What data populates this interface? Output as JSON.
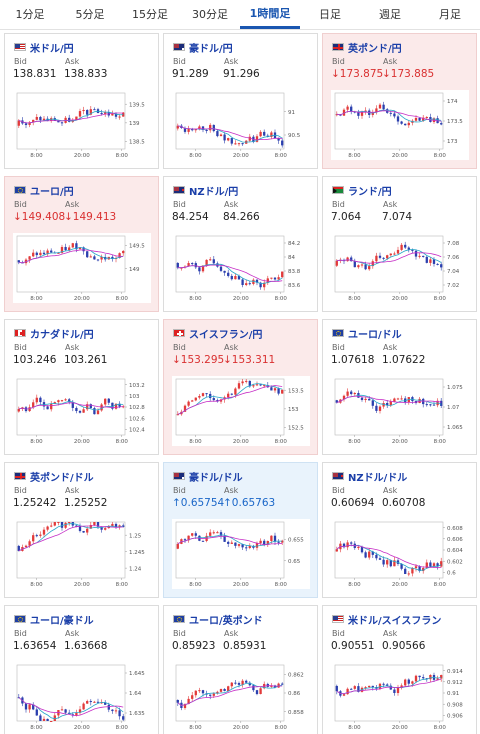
{
  "tabs": [
    "1分足",
    "5分足",
    "15分足",
    "30分足",
    "1時間足",
    "日足",
    "週足",
    "月足"
  ],
  "active_tab": 4,
  "labels": {
    "bid": "Bid",
    "ask": "Ask"
  },
  "colors": {
    "bull": "#e23a3a",
    "bear": "#2b3fae",
    "ma1": "#c62fc6",
    "ma2": "#27a7c8",
    "down_bg": "#fbeaea",
    "up_bg": "#e9f3fc",
    "accent": "#1a56b0"
  },
  "cards": [
    {
      "name": "米ドル/円",
      "flag": "us-flag",
      "bid": "138.831",
      "ask": "138.833",
      "trend": "none",
      "xticks": [
        "8:00",
        "20:00",
        "8:00"
      ],
      "yticks": [
        "139.5",
        "139",
        "138.5"
      ],
      "ylim": [
        138.3,
        139.8
      ]
    },
    {
      "name": "豪ドル/円",
      "flag": "au-flag",
      "bid": "91.289",
      "ask": "91.296",
      "trend": "none",
      "xticks": [
        "8:00",
        "20:00",
        "8:00"
      ],
      "yticks": [
        "91",
        "90.5"
      ],
      "ylim": [
        90.2,
        91.4
      ]
    },
    {
      "name": "英ポンド/円",
      "flag": "gb-flag",
      "bid": "↓173.875",
      "ask": "↓173.885",
      "trend": "down",
      "xticks": [
        "8:00",
        "20:00",
        "8:00"
      ],
      "yticks": [
        "174",
        "173.5",
        "173"
      ],
      "ylim": [
        172.8,
        174.2
      ]
    },
    {
      "name": "ユーロ/円",
      "flag": "eu-flag",
      "bid": "↓149.408",
      "ask": "↓149.413",
      "trend": "down",
      "xticks": [
        "8:00",
        "20:00",
        "8:00"
      ],
      "yticks": [
        "149.5",
        "149"
      ],
      "ylim": [
        148.5,
        149.7
      ]
    },
    {
      "name": "NZドル/円",
      "flag": "nz-flag",
      "bid": "84.254",
      "ask": "84.266",
      "trend": "none",
      "xticks": [
        "8:00",
        "20:00",
        "8:00"
      ],
      "yticks": [
        "84.2",
        "84",
        "83.8",
        "83.6"
      ],
      "ylim": [
        83.5,
        84.3
      ]
    },
    {
      "name": "ランド/円",
      "flag": "za-flag",
      "bid": "7.064",
      "ask": "7.074",
      "trend": "none",
      "xticks": [
        "8:00",
        "20:00",
        "8:00"
      ],
      "yticks": [
        "7.08",
        "7.06",
        "7.04",
        "7.02"
      ],
      "ylim": [
        7.01,
        7.09
      ]
    },
    {
      "name": "カナダドル/円",
      "flag": "ca-flag",
      "bid": "103.246",
      "ask": "103.261",
      "trend": "none",
      "xticks": [
        "8:00",
        "20:00",
        "8:00"
      ],
      "yticks": [
        "103.2",
        "103",
        "102.8",
        "102.6",
        "102.4"
      ],
      "ylim": [
        102.3,
        103.3
      ]
    },
    {
      "name": "スイスフラン/円",
      "flag": "ch-flag",
      "bid": "↓153.295",
      "ask": "↓153.311",
      "trend": "down",
      "xticks": [
        "8:00",
        "20:00",
        "8:00"
      ],
      "yticks": [
        "153.5",
        "153",
        "152.5"
      ],
      "ylim": [
        152.3,
        153.8
      ]
    },
    {
      "name": "ユーロ/ドル",
      "flag": "eu-flag",
      "bid": "1.07618",
      "ask": "1.07622",
      "trend": "none",
      "xticks": [
        "8:00",
        "20:00",
        "8:00"
      ],
      "yticks": [
        "1.075",
        "1.07",
        "1.065"
      ],
      "ylim": [
        1.063,
        1.077
      ]
    },
    {
      "name": "英ポンド/ドル",
      "flag": "gb-flag",
      "bid": "1.25242",
      "ask": "1.25252",
      "trend": "none",
      "xticks": [
        "8:00",
        "20:00",
        "8:00"
      ],
      "yticks": [
        "1.25",
        "1.245",
        "1.24"
      ],
      "ylim": [
        1.237,
        1.254
      ]
    },
    {
      "name": "豪ドル/ドル",
      "flag": "au-flag",
      "bid": "↑0.65754",
      "ask": "↑0.65763",
      "trend": "up",
      "xticks": [
        "8:00",
        "20:00",
        "8:00"
      ],
      "yticks": [
        "0.655",
        "0.65"
      ],
      "ylim": [
        0.646,
        0.659
      ]
    },
    {
      "name": "NZドル/ドル",
      "flag": "nz-flag",
      "bid": "0.60694",
      "ask": "0.60708",
      "trend": "none",
      "xticks": [
        "8:00",
        "20:00",
        "8:00"
      ],
      "yticks": [
        "0.608",
        "0.606",
        "0.604",
        "0.602",
        "0.6"
      ],
      "ylim": [
        0.599,
        0.609
      ]
    },
    {
      "name": "ユーロ/豪ドル",
      "flag": "eu-flag",
      "bid": "1.63654",
      "ask": "1.63668",
      "trend": "none",
      "xticks": [
        "8:00",
        "20:00",
        "8:00"
      ],
      "yticks": [
        "1.645",
        "1.64",
        "1.635"
      ],
      "ylim": [
        1.633,
        1.647
      ]
    },
    {
      "name": "ユーロ/英ポンド",
      "flag": "eu-flag",
      "bid": "0.85923",
      "ask": "0.85931",
      "trend": "none",
      "xticks": [
        "8:00",
        "20:00",
        "8:00"
      ],
      "yticks": [
        "0.862",
        "0.86",
        "0.858"
      ],
      "ylim": [
        0.857,
        0.863
      ]
    },
    {
      "name": "米ドル/スイスフラン",
      "flag": "us-flag",
      "bid": "0.90551",
      "ask": "0.90566",
      "trend": "none",
      "xticks": [
        "8:00",
        "20:00",
        "8:00"
      ],
      "yticks": [
        "0.914",
        "0.912",
        "0.91",
        "0.908",
        "0.906"
      ],
      "ylim": [
        0.905,
        0.915
      ]
    }
  ]
}
